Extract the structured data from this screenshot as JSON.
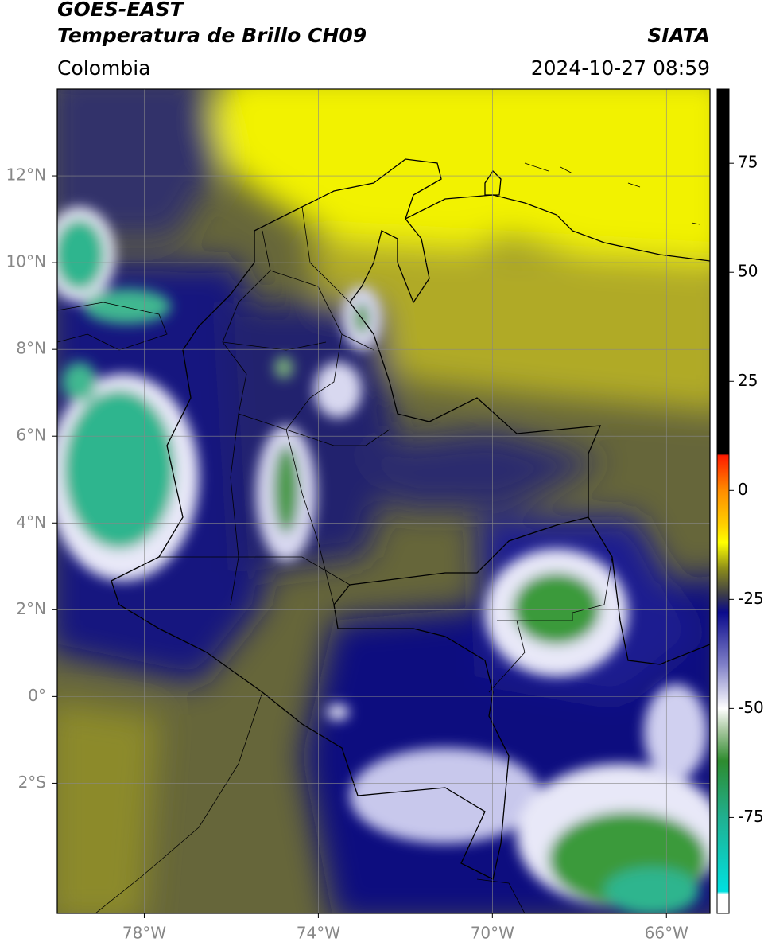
{
  "header": {
    "satellite": "GOES-EAST",
    "product": "Temperatura de Brillo CH09",
    "agency": "SIATA",
    "region": "Colombia",
    "timestamp": "2024-10-27 08:59"
  },
  "map": {
    "xlim": [
      -80,
      -65
    ],
    "ylim": [
      -5,
      14
    ],
    "xticks": [
      {
        "value": -78,
        "label": "78°W"
      },
      {
        "value": -74,
        "label": "74°W"
      },
      {
        "value": -70,
        "label": "70°W"
      },
      {
        "value": -66,
        "label": "66°W"
      }
    ],
    "yticks": [
      {
        "value": 12,
        "label": "12°N"
      },
      {
        "value": 10,
        "label": "10°N"
      },
      {
        "value": 8,
        "label": "8°N"
      },
      {
        "value": 6,
        "label": "6°N"
      },
      {
        "value": 4,
        "label": "4°N"
      },
      {
        "value": 2,
        "label": "2°N"
      },
      {
        "value": 0,
        "label": "0°"
      },
      {
        "value": -2,
        "label": "2°S"
      }
    ],
    "grid": true,
    "grid_color": "#888888"
  },
  "colorbar": {
    "lim": [
      -97,
      92
    ],
    "ticks": [
      75,
      50,
      25,
      0,
      -25,
      -50,
      -75
    ],
    "stops": [
      {
        "value": 92,
        "color": "#000000"
      },
      {
        "value": 8.4,
        "color": "#000000"
      },
      {
        "value": 8,
        "color": "#ff1a00"
      },
      {
        "value": 0,
        "color": "#ff8c00"
      },
      {
        "value": -8,
        "color": "#ffd000"
      },
      {
        "value": -12,
        "color": "#ffff00"
      },
      {
        "value": -18,
        "color": "#8c8c1a"
      },
      {
        "value": -24,
        "color": "#3a3a4a"
      },
      {
        "value": -28,
        "color": "#0a0a8c"
      },
      {
        "value": -40,
        "color": "#8080c8"
      },
      {
        "value": -50,
        "color": "#ffffff"
      },
      {
        "value": -55,
        "color": "#a8c8a0"
      },
      {
        "value": -62,
        "color": "#2e8b2e"
      },
      {
        "value": -75,
        "color": "#20b090"
      },
      {
        "value": -92,
        "color": "#00e0e0"
      },
      {
        "value": -92.6,
        "color": "#ffffff"
      },
      {
        "value": -97,
        "color": "#ffffff"
      }
    ]
  }
}
